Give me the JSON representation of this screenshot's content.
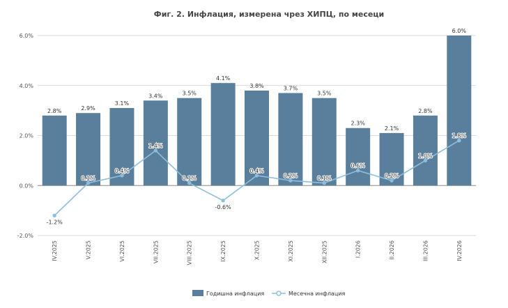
{
  "chart_data": {
    "type": "bar",
    "title": "Фиг. 2. Инфлация, измерена чрез ХИПЦ, по месеци",
    "categories": [
      "IV.2025",
      "V.2025",
      "VI.2025",
      "VII.2025",
      "VIII.2025",
      "IX.2025",
      "X.2025",
      "XI.2025",
      "XII.2025",
      "I.2026",
      "II.2026",
      "III.2026",
      "IV.2026"
    ],
    "series": [
      {
        "name": "Годишна инфлация",
        "kind": "bar",
        "color": "#5a7f9c",
        "values": [
          2.8,
          2.9,
          3.1,
          3.4,
          3.5,
          4.1,
          3.8,
          3.7,
          3.5,
          2.3,
          2.1,
          2.8,
          6.0
        ],
        "labels": [
          "2.8%",
          "2.9%",
          "3.1%",
          "3.4%",
          "3.5%",
          "4.1%",
          "3.8%",
          "3.7%",
          "3.5%",
          "2.3%",
          "2.1%",
          "2.8%",
          "6.0%"
        ]
      },
      {
        "name": "Месечна инфлация",
        "kind": "line",
        "color": "#8dbfdc",
        "values": [
          -1.2,
          0.1,
          0.4,
          1.4,
          0.1,
          -0.6,
          0.4,
          0.2,
          0.1,
          0.6,
          0.2,
          1.0,
          1.8
        ],
        "labels": [
          "-1.2%",
          "0.1%",
          "0.4%",
          "1.4%",
          "0.1%",
          "-0.6%",
          "0.4%",
          "0.2%",
          "0.1%",
          "0.6%",
          "0.2%",
          "1.0%",
          "1.8%"
        ]
      }
    ],
    "ylim": [
      -2.0,
      6.0
    ],
    "yticks": [
      -2.0,
      0.0,
      2.0,
      4.0,
      6.0
    ],
    "ytick_labels": [
      "-2.0%",
      "0.0%",
      "2.0%",
      "4.0%",
      "6.0%"
    ],
    "xlabel": "",
    "ylabel": "",
    "grid": true,
    "legend": "bottom-center",
    "colors": {
      "bar": "#5a7f9c",
      "line": "#8dbfdc",
      "grid": "#cccccc",
      "zero": "#888888"
    }
  }
}
